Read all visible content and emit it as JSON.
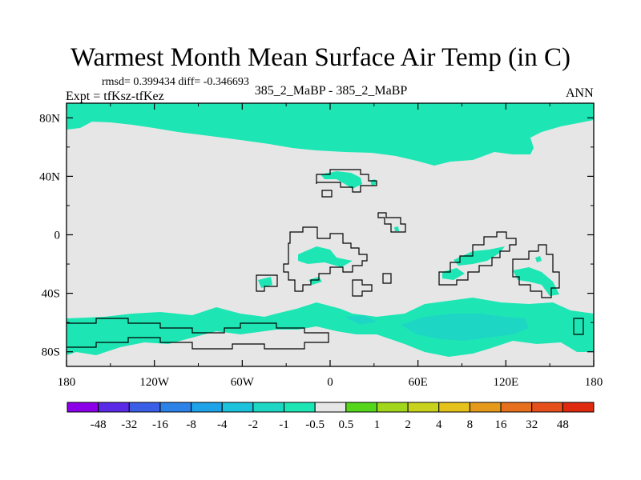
{
  "chart_data": {
    "type": "map-contour",
    "title": "Warmest Month Mean Surface Air Temp (in C)",
    "stats_text": "rmsd= 0.399434 diff= -0.346693",
    "left_label": "Expt = tfKsz-tfKez",
    "center_label": "385_2_MaBP - 385_2_MaBP",
    "right_label": "ANN",
    "x_ticks": [
      "180",
      "120W",
      "60W",
      "0",
      "60E",
      "120E",
      "180"
    ],
    "x_tick_values": [
      -180,
      -120,
      -60,
      0,
      60,
      120,
      180
    ],
    "y_ticks": [
      "80N",
      "40N",
      "0",
      "40S",
      "80S"
    ],
    "y_tick_values": [
      80,
      40,
      0,
      -40,
      -80
    ],
    "xlim": [
      -180,
      180
    ],
    "ylim": [
      -90,
      90
    ],
    "colorbar": {
      "labels": [
        "-48",
        "-32",
        "-16",
        "-8",
        "-4",
        "-2",
        "-1",
        "-0.5",
        "0.5",
        "1",
        "2",
        "4",
        "8",
        "16",
        "32",
        "48"
      ],
      "colors": [
        "#8b00e8",
        "#5a2ae6",
        "#3a5fe6",
        "#2d82e8",
        "#1ea2e8",
        "#1cc1dc",
        "#1ed6c4",
        "#1de6b4",
        "#e6e6e6",
        "#55d61c",
        "#a2d61c",
        "#c8d21c",
        "#e6c21c",
        "#e69a1c",
        "#e6701c",
        "#e6501c",
        "#e02a10"
      ]
    },
    "field_levels": {
      "background": "#e6e6e6",
      "slight_cooling": "#1de6b4",
      "moderate_cooling": "#1ed6c4"
    }
  }
}
